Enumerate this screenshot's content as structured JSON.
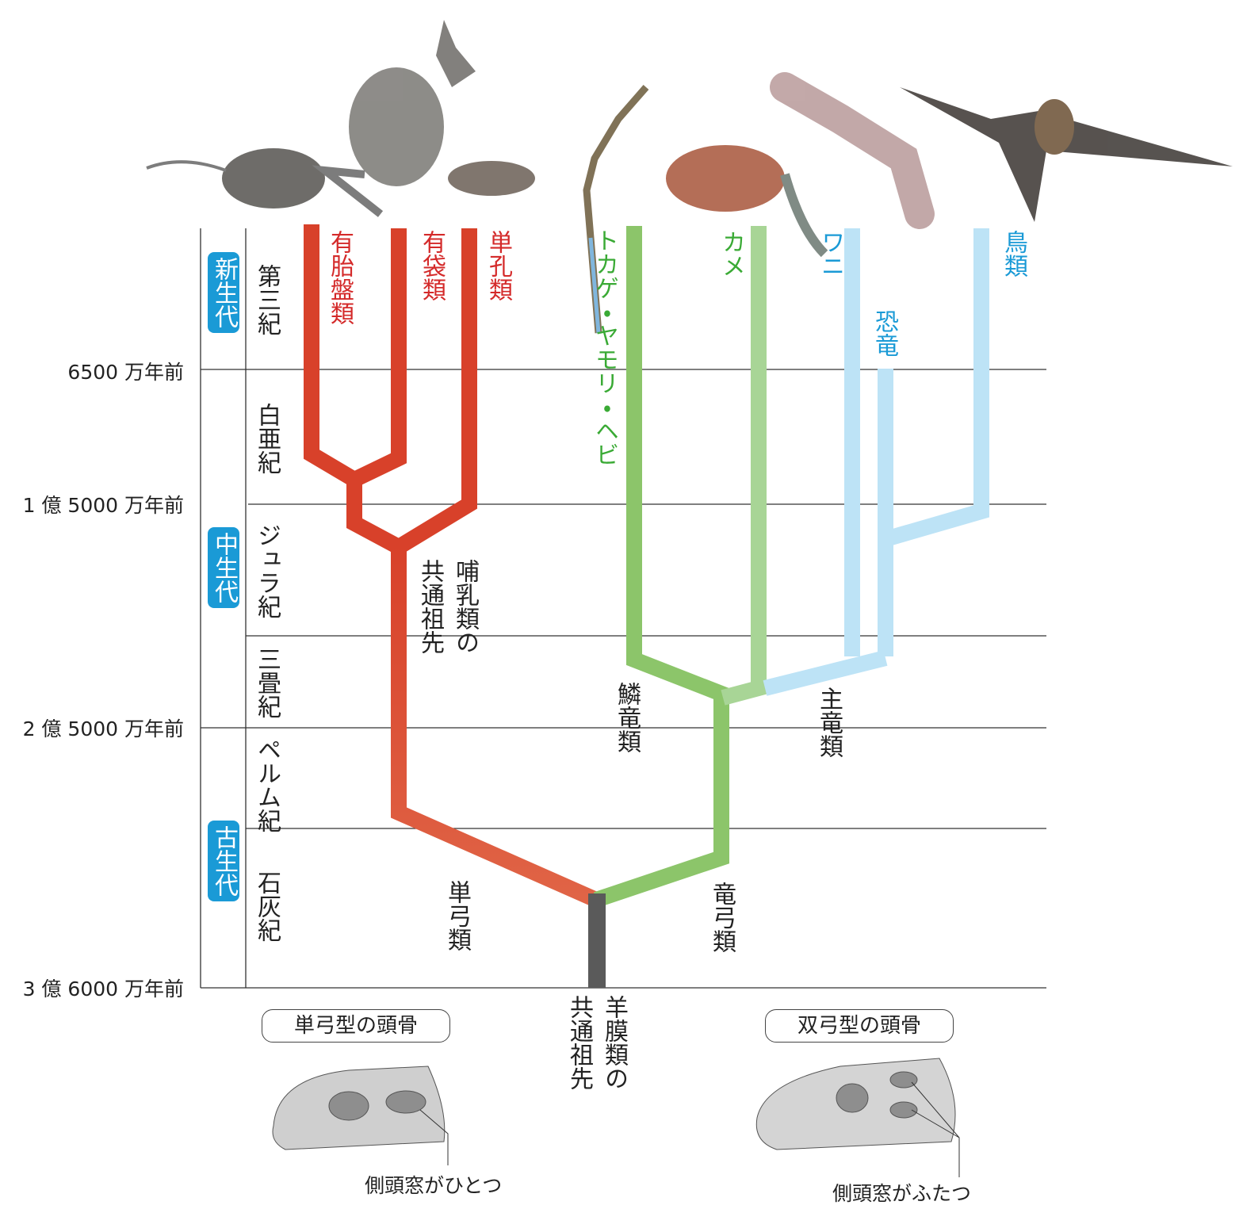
{
  "time_labels": [
    "6500 万年前",
    "1 億 5000 万年前",
    "2 億 5000 万年前",
    "3 億 6000 万年前"
  ],
  "eras": [
    "新生代",
    "中生代",
    "古生代"
  ],
  "periods": [
    "第三紀",
    "白亜紀",
    "ジュラ紀",
    "三畳紀",
    "ペルム紀",
    "石灰紀"
  ],
  "taxa": [
    "有胎盤類",
    "有袋類",
    "単孔類",
    "トカゲ・ヤモリ・ヘビ",
    "カメ",
    "ワニ",
    "恐竜",
    "鳥類"
  ],
  "clades": [
    "哺乳類の共通祖先",
    "単弓類",
    "鱗竜類",
    "主竜類",
    "竜弓類",
    "羊膜類の共通祖先"
  ],
  "skulls": {
    "synapsid": {
      "title": "単弓型の頭骨",
      "note": "側頭窓がひとつ"
    },
    "diapsid": {
      "title": "双弓型の頭骨",
      "note": "側頭窓がふたつ"
    }
  }
}
